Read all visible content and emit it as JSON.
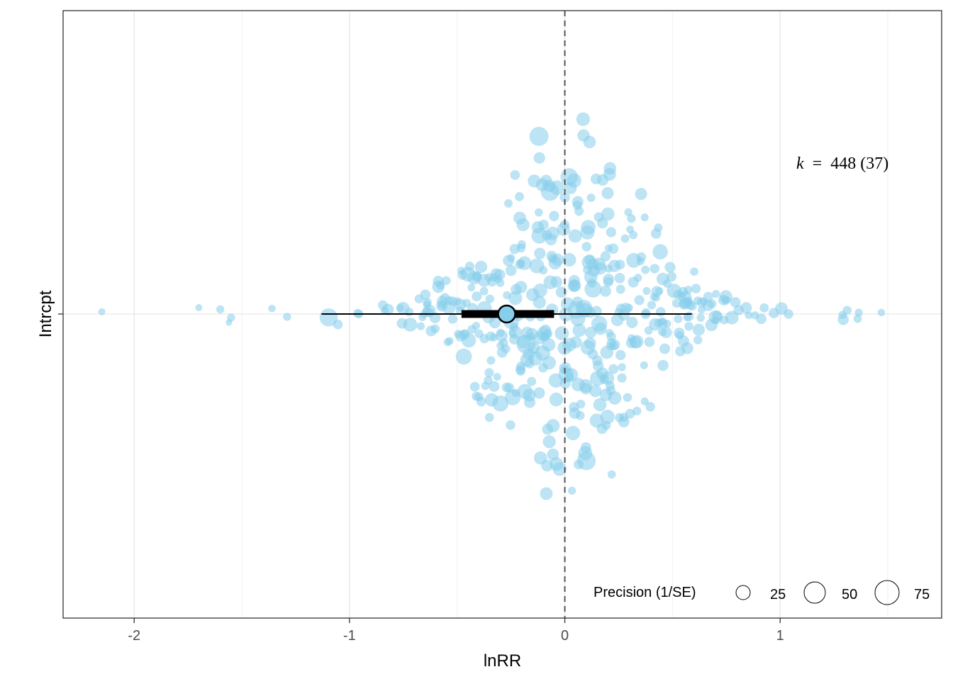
{
  "chart_data": {
    "type": "scatter",
    "subtype": "orchard-plot",
    "xlabel": "lnRR",
    "ylabel": "Intrcpt",
    "xlim": [
      -2.33,
      1.75
    ],
    "x_ticks": [
      -2,
      -1,
      0,
      1
    ],
    "x_tick_labels": [
      "-2",
      "-1",
      "0",
      "1"
    ],
    "y_category": "Intrcpt",
    "grid": true,
    "reference_line": 0,
    "annotation": {
      "k_symbol": "k",
      "equals": "=",
      "value": "448 (37)"
    },
    "estimate": {
      "mean": -0.27,
      "ci": [
        -0.48,
        -0.05
      ],
      "pi": [
        -1.13,
        0.59
      ]
    },
    "legend": {
      "title": "Precision (1/SE)",
      "position": "bottom-right",
      "items": [
        {
          "label": "25",
          "value": 25
        },
        {
          "label": "50",
          "value": 50
        },
        {
          "label": "75",
          "value": 75
        }
      ]
    },
    "colors": {
      "points": "#87ceeb",
      "estimate_fill": "#87ceeb",
      "estimate_stroke": "#000000"
    },
    "points_summary": {
      "count": 448,
      "x_min": -2.15,
      "x_max": 1.47,
      "note_values": "individual effect sizes spread mostly between -1.2 and 1.4"
    }
  }
}
